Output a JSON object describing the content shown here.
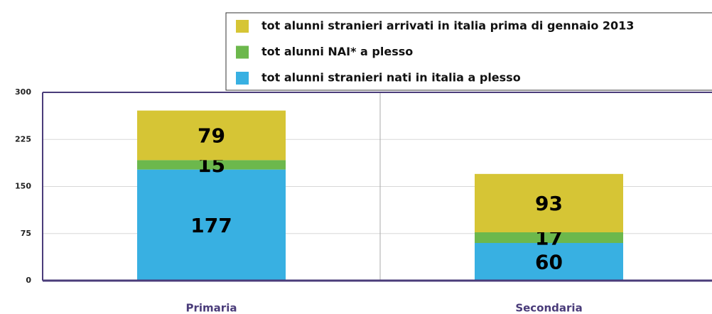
{
  "chart_data": {
    "type": "stacked_bar",
    "categories": [
      "Primaria",
      "Secondaria"
    ],
    "series": [
      {
        "name": "tot alunni stranieri nati in italia a plesso",
        "color": "#38b0e2",
        "values": [
          177,
          60
        ]
      },
      {
        "name": "tot alunni NAI* a plesso",
        "color": "#6cb84c",
        "values": [
          15,
          17
        ]
      },
      {
        "name": "tot alunni stranieri arrivati in italia prima di gennaio 2013",
        "color": "#d6c535",
        "values": [
          79,
          93
        ]
      }
    ],
    "ylim": [
      0,
      300
    ],
    "yticks": [
      0,
      75,
      150,
      225,
      300
    ],
    "grid": true,
    "legend": "top-right"
  }
}
